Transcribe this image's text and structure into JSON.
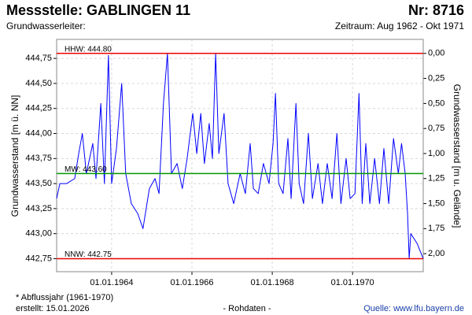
{
  "chart_data": {
    "type": "line",
    "title": "Messstelle: GABLINGEN 11",
    "number": "Nr: 8716",
    "subtitle_left": "Grundwasserleiter:",
    "subtitle_right": "Zeitraum: Aug 1962 - Okt 1971",
    "ylabel": "Grundwasserstand [m ü. NN]",
    "y2label": "Grundwasserstand [m u. Gelände]",
    "footnote": "* Abflussjahr (1961-1970)",
    "created": "erstellt:  15.01.2026",
    "center_note": "- Rohdaten -",
    "source": "Quelle:  www.lfu.bayern.de",
    "color": "#0000ff",
    "grid": true,
    "x": [
      1962.63,
      1962.71,
      1962.88,
      1963.08,
      1963.18,
      1963.27,
      1963.37,
      1963.53,
      1963.61,
      1963.73,
      1963.82,
      1963.92,
      1964.0,
      1964.12,
      1964.25,
      1964.35,
      1964.49,
      1964.65,
      1964.78,
      1964.94,
      1965.08,
      1965.18,
      1965.29,
      1965.39,
      1965.49,
      1965.63,
      1965.76,
      1965.88,
      1966.02,
      1966.12,
      1966.22,
      1966.31,
      1966.43,
      1966.51,
      1966.59,
      1966.67,
      1966.8,
      1966.9,
      1967.04,
      1967.2,
      1967.33,
      1967.45,
      1967.53,
      1967.65,
      1967.78,
      1967.92,
      1968.02,
      1968.08,
      1968.16,
      1968.27,
      1968.39,
      1968.47,
      1968.59,
      1968.67,
      1968.78,
      1968.9,
      1969.0,
      1969.14,
      1969.25,
      1969.37,
      1969.49,
      1969.61,
      1969.71,
      1969.84,
      1969.94,
      1970.06,
      1970.16,
      1970.24,
      1970.33,
      1970.43,
      1970.55,
      1970.67,
      1970.78,
      1970.9,
      1971.02,
      1971.14,
      1971.22,
      1971.31,
      1971.37,
      1971.41,
      1971.45,
      1971.61,
      1971.76
    ],
    "values": [
      443.35,
      443.5,
      443.5,
      443.55,
      443.8,
      444.0,
      443.6,
      443.9,
      443.55,
      444.3,
      443.5,
      444.78,
      443.5,
      443.85,
      444.5,
      443.6,
      443.3,
      443.2,
      443.05,
      443.45,
      443.55,
      443.4,
      444.3,
      444.8,
      443.6,
      443.7,
      443.45,
      443.75,
      444.2,
      443.8,
      444.2,
      443.7,
      444.1,
      443.75,
      444.8,
      443.8,
      444.2,
      443.5,
      443.3,
      443.6,
      443.4,
      443.9,
      443.45,
      443.4,
      443.7,
      443.5,
      443.9,
      444.4,
      443.5,
      443.4,
      443.95,
      443.35,
      444.3,
      443.5,
      443.3,
      444.0,
      443.35,
      443.7,
      443.3,
      443.7,
      443.35,
      444.0,
      443.3,
      443.75,
      443.35,
      443.4,
      444.4,
      443.3,
      443.9,
      443.3,
      443.75,
      443.3,
      443.85,
      443.3,
      443.95,
      443.6,
      443.9,
      443.6,
      443.2,
      442.75,
      443.0,
      442.9,
      442.75
    ],
    "xlim": [
      1962.63,
      1971.76
    ],
    "xticks": [
      {
        "value": 1964,
        "label": "01.01.1964"
      },
      {
        "value": 1966,
        "label": "01.01.1966"
      },
      {
        "value": 1968,
        "label": "01.01.1968"
      },
      {
        "value": 1970,
        "label": "01.01.1970"
      }
    ],
    "ylim": [
      442.62,
      444.94
    ],
    "yticks": [
      {
        "value": 442.75,
        "label": "442,75"
      },
      {
        "value": 443.0,
        "label": "443,00"
      },
      {
        "value": 443.25,
        "label": "443,25"
      },
      {
        "value": 443.5,
        "label": "443,50"
      },
      {
        "value": 443.75,
        "label": "443,75"
      },
      {
        "value": 444.0,
        "label": "444,00"
      },
      {
        "value": 444.25,
        "label": "444,25"
      },
      {
        "value": 444.5,
        "label": "444,50"
      },
      {
        "value": 444.75,
        "label": "444,75"
      }
    ],
    "y2lim": [
      2.18,
      -0.14
    ],
    "y2ticks": [
      {
        "value": 0,
        "label": "0,00"
      },
      {
        "value": 0.25,
        "label": "0,25"
      },
      {
        "value": 0.5,
        "label": "0,50"
      },
      {
        "value": 0.75,
        "label": "0,75"
      },
      {
        "value": 1.0,
        "label": "1,00"
      },
      {
        "value": 1.25,
        "label": "1,25"
      },
      {
        "value": 1.5,
        "label": "1,50"
      },
      {
        "value": 1.75,
        "label": "1,75"
      },
      {
        "value": 2.0,
        "label": "2,00"
      }
    ],
    "reference_lines": [
      {
        "label": "HHW: 444.80",
        "value": 444.8,
        "color": "#ee0000"
      },
      {
        "label": "MW: 443.60",
        "value": 443.6,
        "color": "#009900"
      },
      {
        "label": "NNW: 442.75",
        "value": 442.75,
        "color": "#ee0000"
      }
    ]
  }
}
